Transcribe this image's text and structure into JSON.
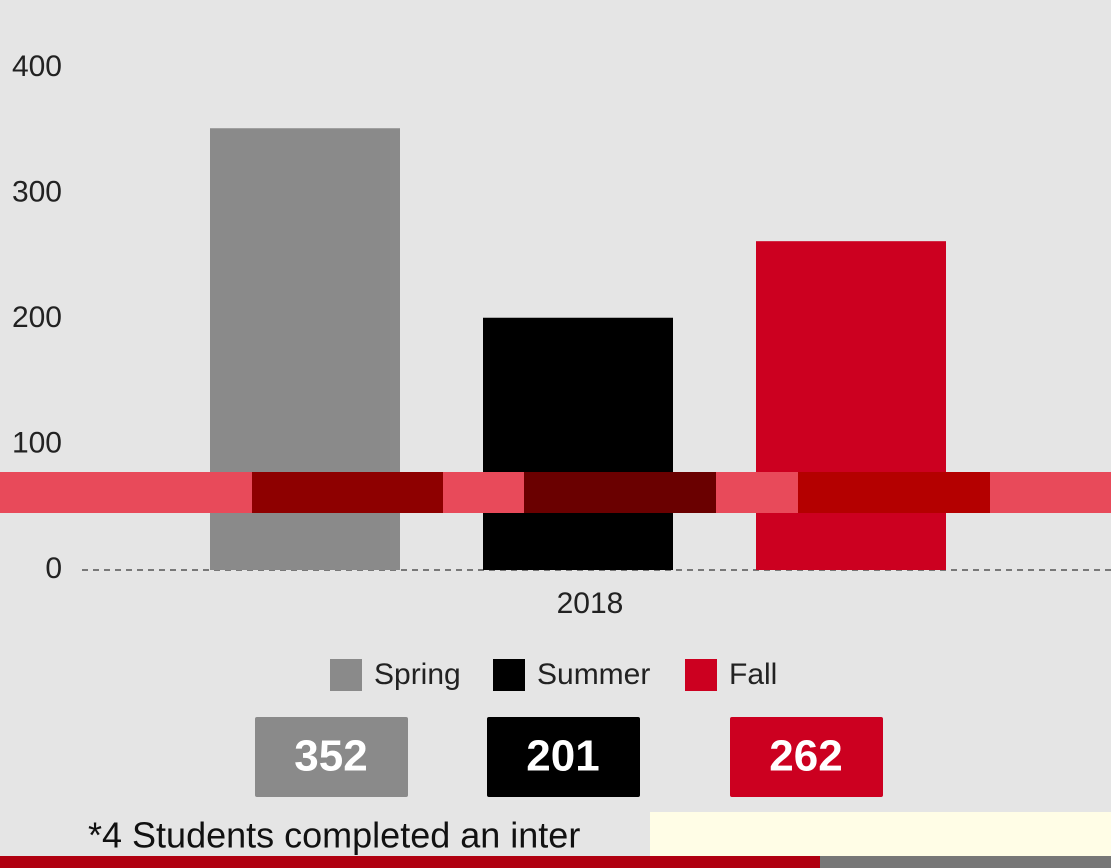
{
  "chart_data": {
    "type": "bar",
    "categories": [
      "2018"
    ],
    "series": [
      {
        "name": "Spring",
        "color": "#8a8a8a",
        "values": [
          352
        ]
      },
      {
        "name": "Summer",
        "color": "#000000",
        "values": [
          201
        ]
      },
      {
        "name": "Fall",
        "color": "#cc0020",
        "values": [
          262
        ]
      }
    ],
    "ylim": [
      0,
      400
    ],
    "yticks": [
      0,
      100,
      200,
      300,
      400
    ],
    "legend": "bottom"
  },
  "footnote": "*4 Students completed an inter"
}
